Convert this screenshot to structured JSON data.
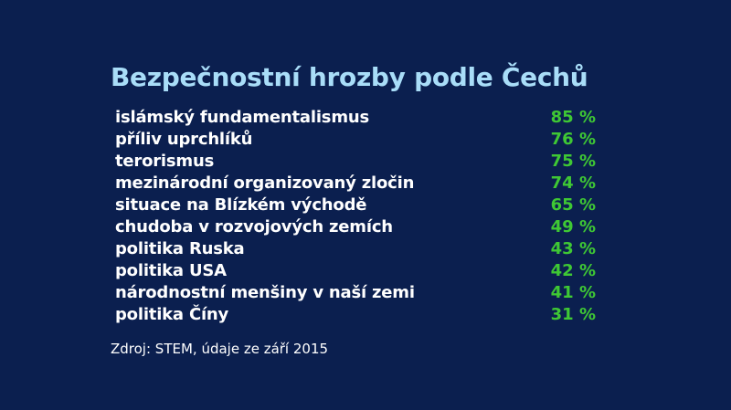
{
  "chart_data": {
    "type": "table",
    "title": "Bezpečnostní hrozby podle Čechů",
    "rows": [
      {
        "label": "islámský fundamentalismus",
        "value": 85,
        "display": "85 %"
      },
      {
        "label": "příliv uprchlíků",
        "value": 76,
        "display": "76 %"
      },
      {
        "label": "terorismus",
        "value": 75,
        "display": "75 %"
      },
      {
        "label": "mezinárodní organizovaný zločin",
        "value": 74,
        "display": "74 %"
      },
      {
        "label": "situace na Blízkém východě",
        "value": 65,
        "display": "65 %"
      },
      {
        "label": "chudoba v rozvojových zemích",
        "value": 49,
        "display": "49 %"
      },
      {
        "label": "politika Ruska",
        "value": 43,
        "display": "43 %"
      },
      {
        "label": "politika USA",
        "value": 42,
        "display": "42 %"
      },
      {
        "label": "národnostní menšiny v naší zemi",
        "value": 41,
        "display": "41 %"
      },
      {
        "label": "politika Číny",
        "value": 31,
        "display": "31 %"
      }
    ],
    "source": "Zdroj: STEM, údaje ze září 2015"
  },
  "colors": {
    "background": "#0b1f4f",
    "title": "#a9ddf8",
    "label": "#ffffff",
    "value": "#3fc834"
  }
}
